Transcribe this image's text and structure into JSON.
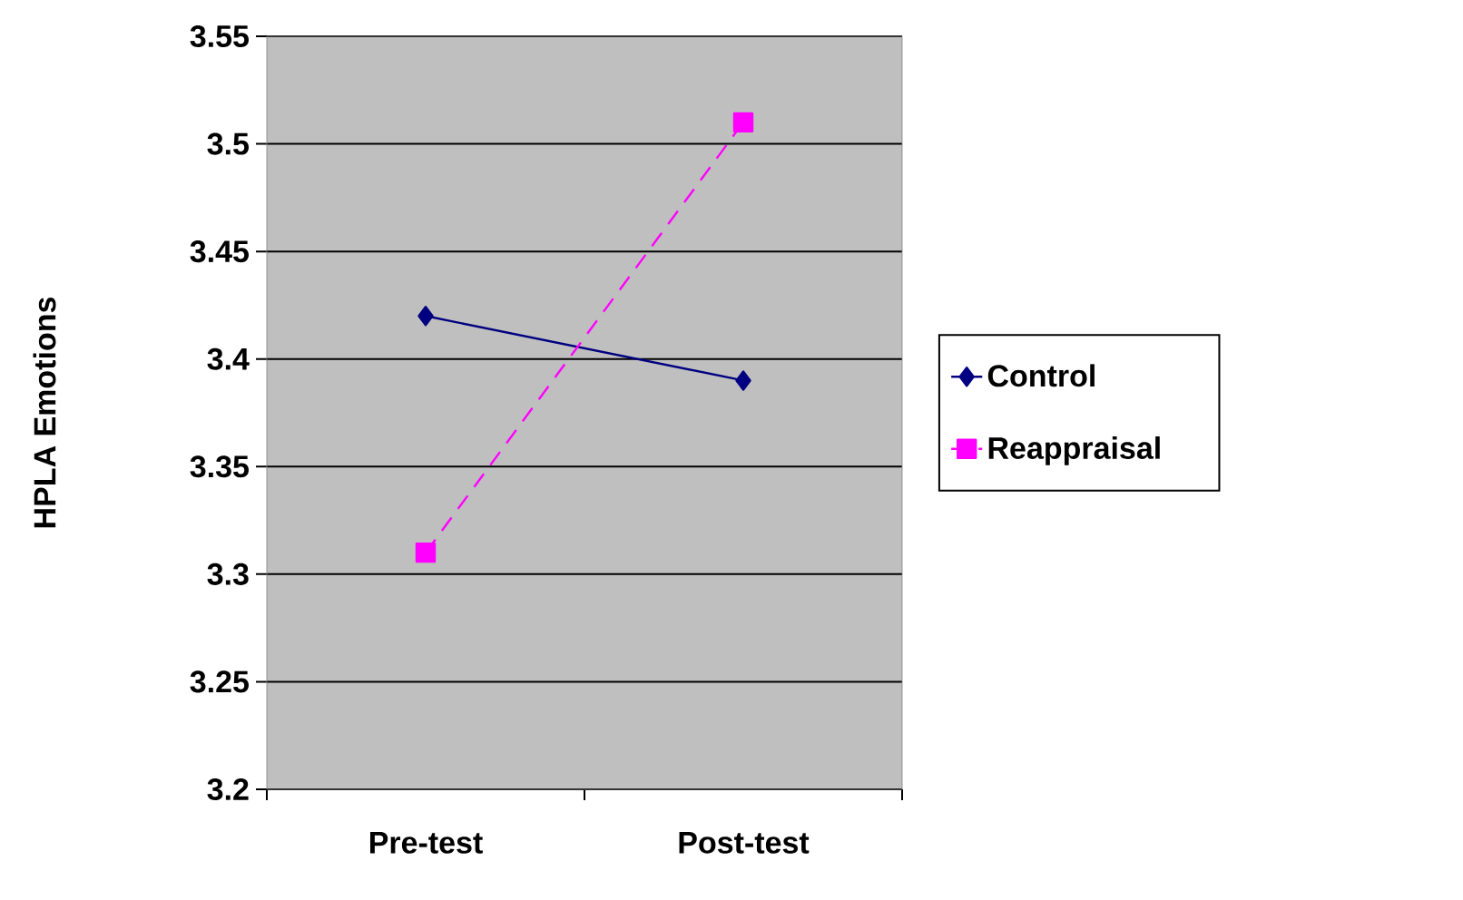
{
  "chart_data": {
    "type": "line",
    "ylabel": "HPLA Emotions",
    "categories": [
      "Pre-test",
      "Post-test"
    ],
    "series": [
      {
        "name": "Control",
        "color": "#000080",
        "values": [
          3.42,
          3.39
        ],
        "marker": "diamond",
        "line_style": "solid"
      },
      {
        "name": "Reappraisal",
        "color": "#ff00ff",
        "values": [
          3.31,
          3.51
        ],
        "marker": "square",
        "line_style": "dashed"
      }
    ],
    "ylim": [
      3.2,
      3.55
    ],
    "yticks": [
      3.2,
      3.25,
      3.3,
      3.35,
      3.4,
      3.45,
      3.5,
      3.55
    ],
    "grid": "y",
    "legend": "right"
  }
}
